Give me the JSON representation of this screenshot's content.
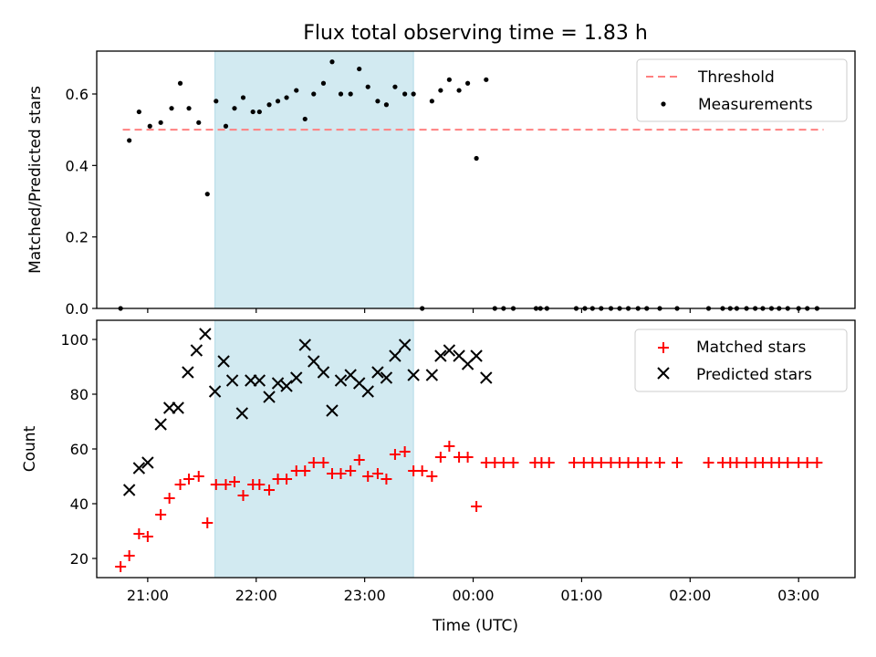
{
  "chart_data": {
    "title": "Flux total observing time = 1.83 h",
    "xlabel": "Time (UTC)",
    "x_ticks": [
      "21:00",
      "22:00",
      "23:00",
      "00:00",
      "01:00",
      "02:00",
      "03:00"
    ],
    "xlim_hours": [
      20.53,
      27.52
    ],
    "shaded_region": {
      "start_hours": 21.62,
      "end_hours": 23.45,
      "color": "#add8e6"
    },
    "panels": [
      {
        "type": "scatter",
        "ylabel": "Matched/Predicted stars",
        "ylim": [
          0,
          0.72
        ],
        "y_ticks": [
          0.0,
          0.2,
          0.4,
          0.6
        ],
        "y_tick_labels": [
          "0.0",
          "0.2",
          "0.4",
          "0.6"
        ],
        "legend_position": "top-right",
        "threshold": {
          "name": "Threshold",
          "value": 0.5,
          "x_start": 20.77,
          "x_end": 27.23,
          "color": "#ff8080",
          "dash": "dashed"
        },
        "series": [
          {
            "name": "Measurements",
            "marker": "dot",
            "color": "#000000",
            "points": [
              [
                20.75,
                0.0
              ],
              [
                20.83,
                0.47
              ],
              [
                20.92,
                0.55
              ],
              [
                21.02,
                0.51
              ],
              [
                21.12,
                0.52
              ],
              [
                21.22,
                0.56
              ],
              [
                21.3,
                0.63
              ],
              [
                21.38,
                0.56
              ],
              [
                21.47,
                0.52
              ],
              [
                21.55,
                0.32
              ],
              [
                21.63,
                0.58
              ],
              [
                21.72,
                0.51
              ],
              [
                21.8,
                0.56
              ],
              [
                21.88,
                0.59
              ],
              [
                21.97,
                0.55
              ],
              [
                22.03,
                0.55
              ],
              [
                22.12,
                0.57
              ],
              [
                22.2,
                0.58
              ],
              [
                22.28,
                0.59
              ],
              [
                22.37,
                0.61
              ],
              [
                22.45,
                0.53
              ],
              [
                22.53,
                0.6
              ],
              [
                22.62,
                0.63
              ],
              [
                22.7,
                0.69
              ],
              [
                22.78,
                0.6
              ],
              [
                22.87,
                0.6
              ],
              [
                22.95,
                0.67
              ],
              [
                23.03,
                0.62
              ],
              [
                23.12,
                0.58
              ],
              [
                23.2,
                0.57
              ],
              [
                23.28,
                0.62
              ],
              [
                23.37,
                0.6
              ],
              [
                23.45,
                0.6
              ],
              [
                23.53,
                0.0
              ],
              [
                23.62,
                0.58
              ],
              [
                23.7,
                0.61
              ],
              [
                23.78,
                0.64
              ],
              [
                23.87,
                0.61
              ],
              [
                23.95,
                0.63
              ],
              [
                24.03,
                0.42
              ],
              [
                24.12,
                0.64
              ],
              [
                24.2,
                0.0
              ],
              [
                24.28,
                0.0
              ],
              [
                24.37,
                0.0
              ],
              [
                24.58,
                0.0
              ],
              [
                24.62,
                0.0
              ],
              [
                24.68,
                0.0
              ],
              [
                24.95,
                0.0
              ],
              [
                25.03,
                0.0
              ],
              [
                25.1,
                0.0
              ],
              [
                25.18,
                0.0
              ],
              [
                25.27,
                0.0
              ],
              [
                25.35,
                0.0
              ],
              [
                25.43,
                0.0
              ],
              [
                25.52,
                0.0
              ],
              [
                25.6,
                0.0
              ],
              [
                25.72,
                0.0
              ],
              [
                25.88,
                0.0
              ],
              [
                26.17,
                0.0
              ],
              [
                26.3,
                0.0
              ],
              [
                26.37,
                0.0
              ],
              [
                26.43,
                0.0
              ],
              [
                26.52,
                0.0
              ],
              [
                26.6,
                0.0
              ],
              [
                26.67,
                0.0
              ],
              [
                26.75,
                0.0
              ],
              [
                26.82,
                0.0
              ],
              [
                26.9,
                0.0
              ],
              [
                27.0,
                0.0
              ],
              [
                27.08,
                0.0
              ],
              [
                27.17,
                0.0
              ]
            ]
          }
        ]
      },
      {
        "type": "scatter",
        "ylabel": "Count",
        "ylim": [
          13,
          107
        ],
        "y_ticks": [
          20,
          40,
          60,
          80,
          100
        ],
        "y_tick_labels": [
          "20",
          "40",
          "60",
          "80",
          "100"
        ],
        "legend_position": "top-right",
        "series": [
          {
            "name": "Matched stars",
            "marker": "plus",
            "color": "#ff0000",
            "points": [
              [
                20.75,
                17
              ],
              [
                20.83,
                21
              ],
              [
                20.92,
                29
              ],
              [
                21.0,
                28
              ],
              [
                21.12,
                36
              ],
              [
                21.2,
                42
              ],
              [
                21.3,
                47
              ],
              [
                21.38,
                49
              ],
              [
                21.47,
                50
              ],
              [
                21.55,
                33
              ],
              [
                21.63,
                47
              ],
              [
                21.72,
                47
              ],
              [
                21.8,
                48
              ],
              [
                21.88,
                43
              ],
              [
                21.97,
                47
              ],
              [
                22.03,
                47
              ],
              [
                22.12,
                45
              ],
              [
                22.2,
                49
              ],
              [
                22.28,
                49
              ],
              [
                22.37,
                52
              ],
              [
                22.45,
                52
              ],
              [
                22.53,
                55
              ],
              [
                22.62,
                55
              ],
              [
                22.7,
                51
              ],
              [
                22.78,
                51
              ],
              [
                22.87,
                52
              ],
              [
                22.95,
                56
              ],
              [
                23.03,
                50
              ],
              [
                23.12,
                51
              ],
              [
                23.2,
                49
              ],
              [
                23.28,
                58
              ],
              [
                23.37,
                59
              ],
              [
                23.45,
                52
              ],
              [
                23.53,
                52
              ],
              [
                23.62,
                50
              ],
              [
                23.7,
                57
              ],
              [
                23.78,
                61
              ],
              [
                23.87,
                57
              ],
              [
                23.95,
                57
              ],
              [
                24.03,
                39
              ],
              [
                24.12,
                55
              ],
              [
                24.2,
                55
              ],
              [
                24.28,
                55
              ],
              [
                24.37,
                55
              ],
              [
                24.57,
                55
              ],
              [
                24.63,
                55
              ],
              [
                24.7,
                55
              ],
              [
                24.93,
                55
              ],
              [
                25.02,
                55
              ],
              [
                25.1,
                55
              ],
              [
                25.18,
                55
              ],
              [
                25.27,
                55
              ],
              [
                25.35,
                55
              ],
              [
                25.43,
                55
              ],
              [
                25.52,
                55
              ],
              [
                25.6,
                55
              ],
              [
                25.72,
                55
              ],
              [
                25.88,
                55
              ],
              [
                26.17,
                55
              ],
              [
                26.3,
                55
              ],
              [
                26.37,
                55
              ],
              [
                26.43,
                55
              ],
              [
                26.52,
                55
              ],
              [
                26.6,
                55
              ],
              [
                26.67,
                55
              ],
              [
                26.75,
                55
              ],
              [
                26.82,
                55
              ],
              [
                26.9,
                55
              ],
              [
                27.0,
                55
              ],
              [
                27.08,
                55
              ],
              [
                27.17,
                55
              ]
            ]
          },
          {
            "name": "Predicted stars",
            "marker": "x",
            "color": "#000000",
            "points": [
              [
                20.83,
                45
              ],
              [
                20.92,
                53
              ],
              [
                21.0,
                55
              ],
              [
                21.12,
                69
              ],
              [
                21.2,
                75
              ],
              [
                21.28,
                75
              ],
              [
                21.37,
                88
              ],
              [
                21.45,
                96
              ],
              [
                21.53,
                102
              ],
              [
                21.62,
                81
              ],
              [
                21.7,
                92
              ],
              [
                21.78,
                85
              ],
              [
                21.87,
                73
              ],
              [
                21.95,
                85
              ],
              [
                22.03,
                85
              ],
              [
                22.12,
                79
              ],
              [
                22.2,
                84
              ],
              [
                22.28,
                83
              ],
              [
                22.37,
                86
              ],
              [
                22.45,
                98
              ],
              [
                22.53,
                92
              ],
              [
                22.62,
                88
              ],
              [
                22.7,
                74
              ],
              [
                22.78,
                85
              ],
              [
                22.87,
                87
              ],
              [
                22.95,
                84
              ],
              [
                23.03,
                81
              ],
              [
                23.12,
                88
              ],
              [
                23.2,
                86
              ],
              [
                23.28,
                94
              ],
              [
                23.37,
                98
              ],
              [
                23.45,
                87
              ],
              [
                23.62,
                87
              ],
              [
                23.7,
                94
              ],
              [
                23.78,
                96
              ],
              [
                23.87,
                94
              ],
              [
                23.95,
                91
              ],
              [
                24.03,
                94
              ],
              [
                24.12,
                86
              ]
            ]
          }
        ]
      }
    ]
  }
}
